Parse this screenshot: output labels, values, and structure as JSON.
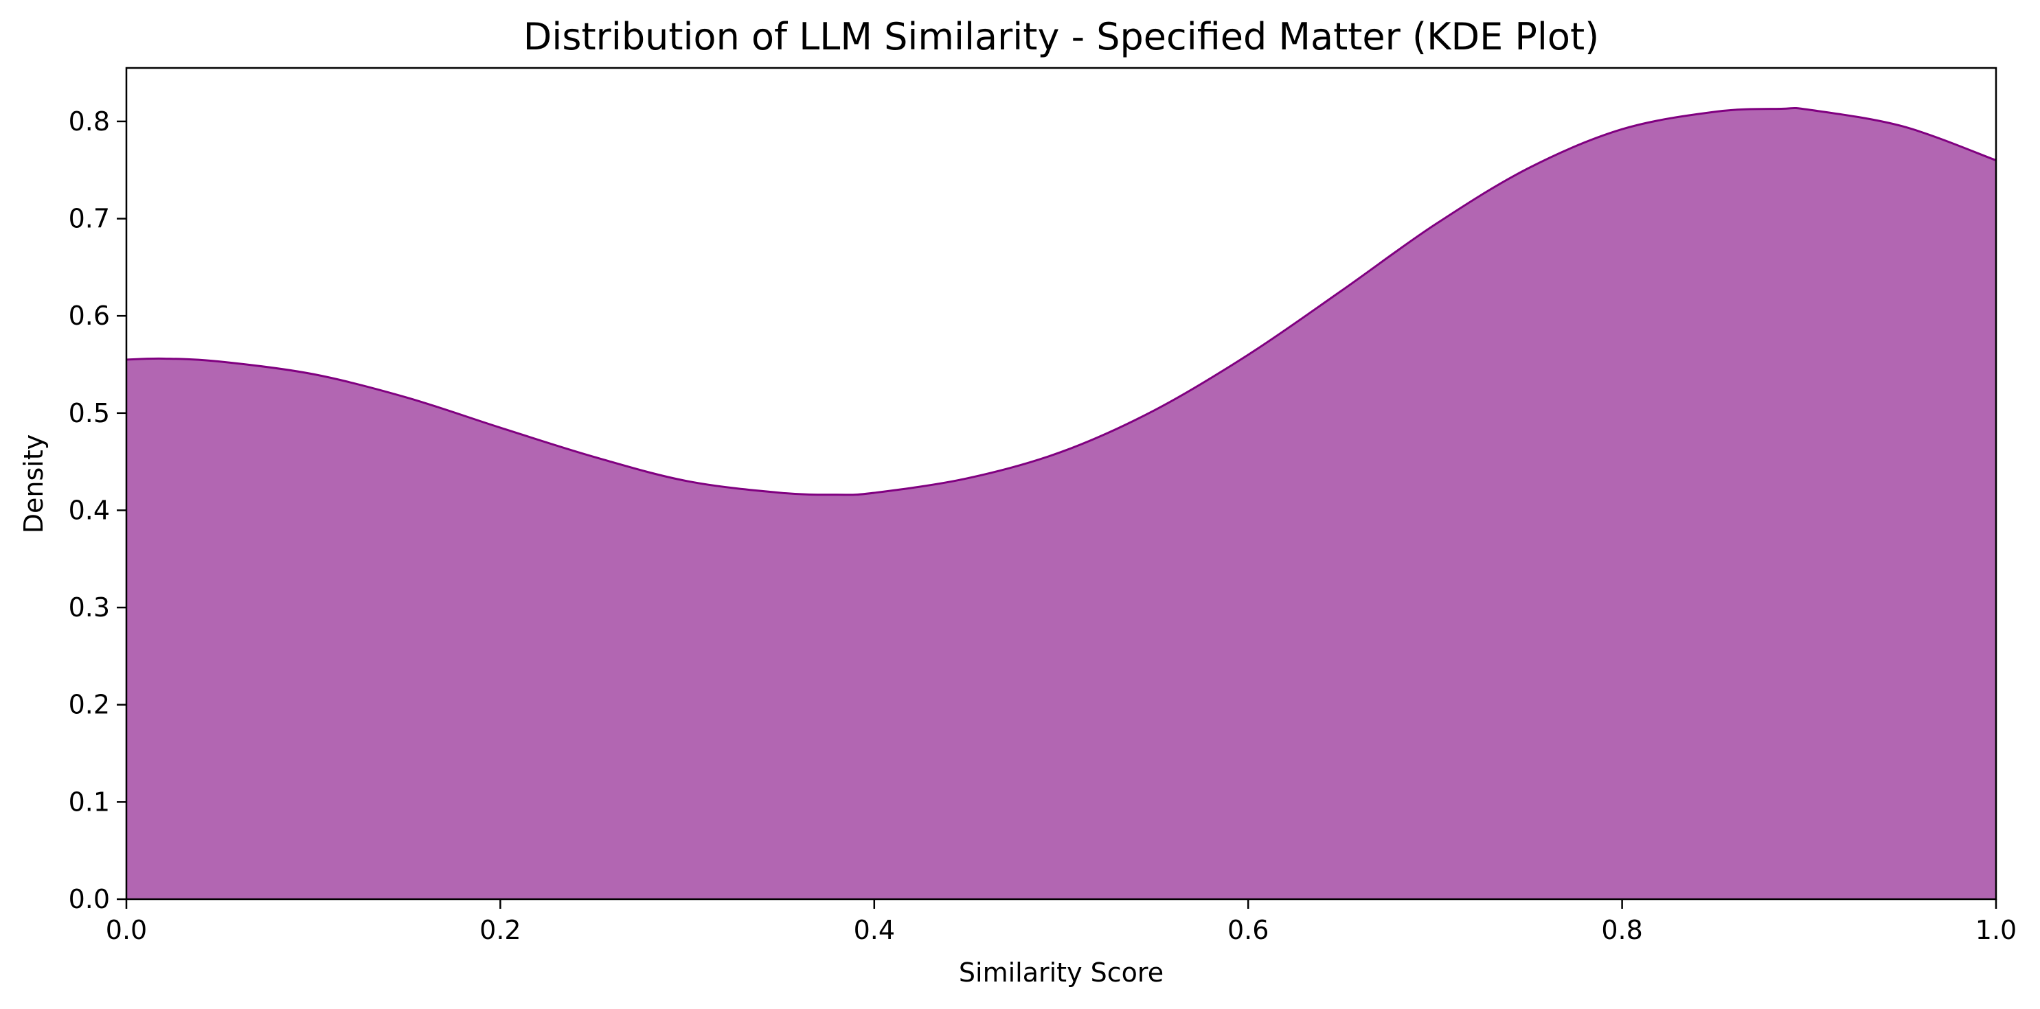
{
  "chart_data": {
    "type": "area",
    "title": "Distribution of LLM Similarity - Specified Matter (KDE Plot)",
    "xlabel": "Similarity Score",
    "ylabel": "Density",
    "xlim": [
      0.0,
      1.0
    ],
    "ylim": [
      0.0,
      0.855
    ],
    "xticks": [
      "0.0",
      "0.2",
      "0.4",
      "0.6",
      "0.8",
      "1.0"
    ],
    "yticks": [
      "0.0",
      "0.1",
      "0.2",
      "0.3",
      "0.4",
      "0.5",
      "0.6",
      "0.7",
      "0.8"
    ],
    "grid": false,
    "legend": "none",
    "colors": {
      "fill": "#b266b2",
      "line": "#800080",
      "axis": "#000000"
    },
    "series": [
      {
        "x": [
          0.0,
          0.02,
          0.05,
          0.1,
          0.15,
          0.2,
          0.25,
          0.3,
          0.35,
          0.38,
          0.4,
          0.45,
          0.5,
          0.55,
          0.6,
          0.65,
          0.7,
          0.75,
          0.8,
          0.85,
          0.885,
          0.9,
          0.95,
          1.0
        ],
        "y": [
          0.555,
          0.556,
          0.553,
          0.54,
          0.516,
          0.485,
          0.455,
          0.43,
          0.418,
          0.416,
          0.418,
          0.433,
          0.46,
          0.503,
          0.56,
          0.626,
          0.694,
          0.752,
          0.792,
          0.81,
          0.813,
          0.812,
          0.795,
          0.76
        ]
      }
    ]
  }
}
